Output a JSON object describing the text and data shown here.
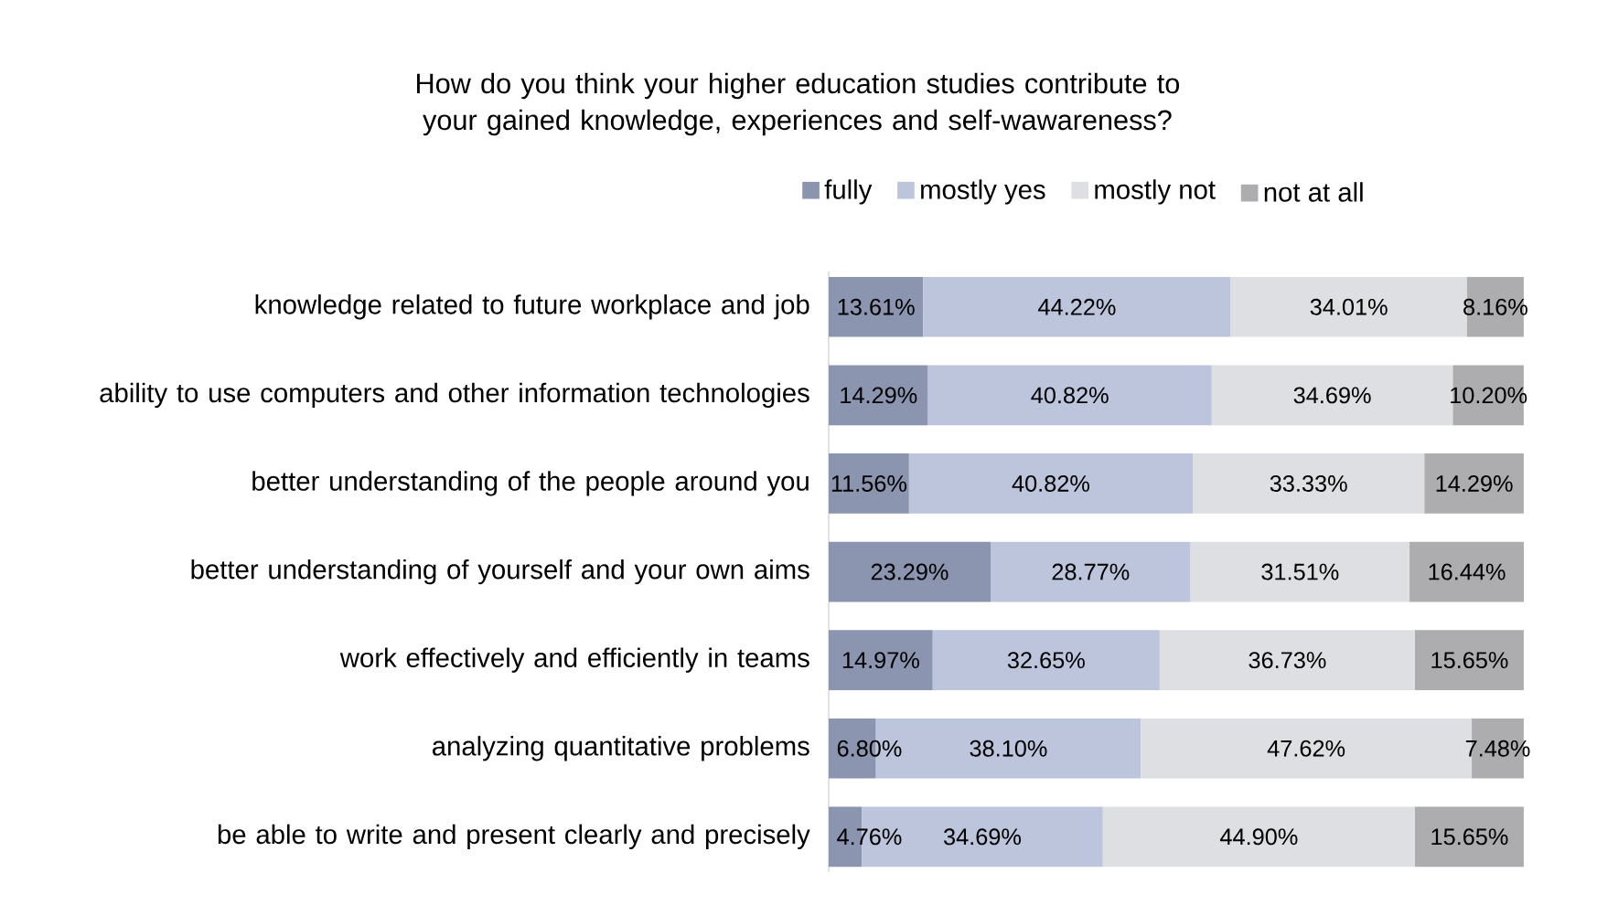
{
  "chart_data": {
    "type": "bar",
    "orientation": "horizontal",
    "stacked": true,
    "title": "How do you think your higher education studies contribute to your gained knowledge, experiences and self-wawareness?",
    "categories": [
      "knowledge related to future workplace and job",
      "ability to use computers and other information technologies",
      "better understanding of the people around you",
      "better understanding of yourself and your own aims",
      "work effectively and efficiently in teams",
      "analyzing quantitative problems",
      "be able to write and present clearly and precisely"
    ],
    "series": [
      {
        "name": "fully",
        "color": "#8b95b0",
        "values": [
          13.61,
          14.29,
          11.56,
          23.29,
          14.97,
          6.8,
          4.76
        ],
        "value_labels": [
          "13.61%",
          "14.29%",
          "11.56%",
          "23.29%",
          "14.97%",
          "6.80%",
          "4.76%"
        ]
      },
      {
        "name": "mostly yes",
        "color": "#bcc5dc",
        "values": [
          44.22,
          40.82,
          40.82,
          28.77,
          32.65,
          38.1,
          34.69
        ],
        "value_labels": [
          "44.22%",
          "40.82%",
          "40.82%",
          "28.77%",
          "32.65%",
          "38.10%",
          "34.69%"
        ]
      },
      {
        "name": "mostly not",
        "color": "#dedfe2",
        "values": [
          34.01,
          34.69,
          33.33,
          31.51,
          36.73,
          47.62,
          44.9
        ],
        "value_labels": [
          "34.01%",
          "34.69%",
          "33.33%",
          "31.51%",
          "36.73%",
          "47.62%",
          "44.90%"
        ]
      },
      {
        "name": "not at all",
        "color": "#adadb0",
        "values": [
          8.16,
          10.2,
          14.29,
          16.44,
          15.65,
          7.48,
          15.65
        ],
        "value_labels": [
          "8.16%",
          "10.20%",
          "14.29%",
          "16.44%",
          "15.65%",
          "7.48%",
          "15.65%"
        ]
      }
    ],
    "legend": "top"
  }
}
